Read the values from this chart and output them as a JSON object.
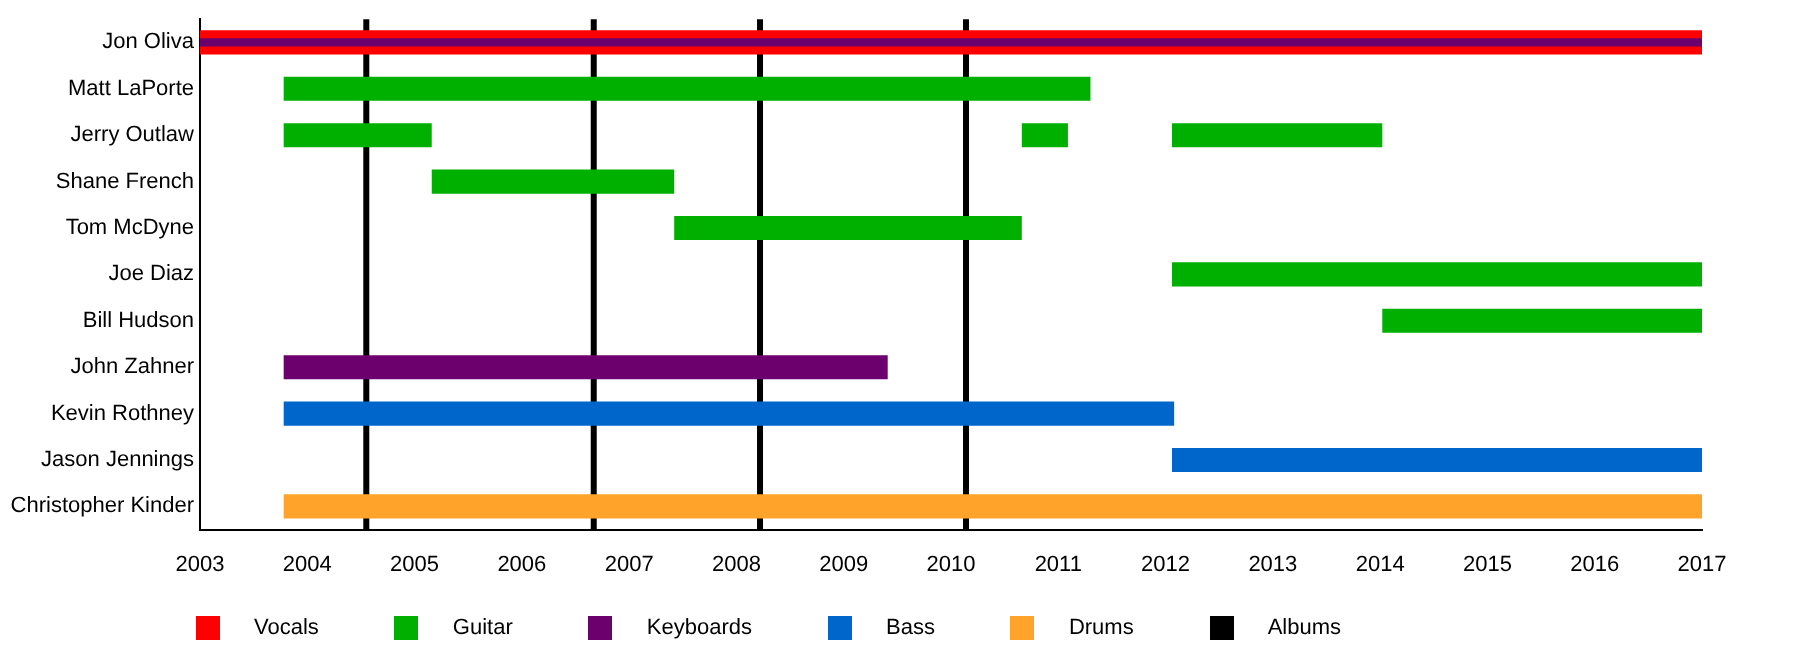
{
  "chart_data": {
    "type": "bar",
    "orientation": "horizontal",
    "legend": "bottom",
    "grid": false,
    "categories": [
      "Jon Oliva",
      "Matt LaPorte",
      "Jerry Outlaw",
      "Shane French",
      "Tom McDyne",
      "Joe Diaz",
      "Bill Hudson",
      "John Zahner",
      "Kevin Rothney",
      "Jason Jennings",
      "Christopher Kinder"
    ],
    "xlim": [
      2003,
      2017
    ],
    "xticks": [
      2003,
      2004,
      2005,
      2006,
      2007,
      2008,
      2009,
      2010,
      2011,
      2012,
      2013,
      2014,
      2015,
      2016,
      2017
    ],
    "series": [
      {
        "name": "Vocals",
        "color": "#ff0000",
        "base": [
          2003,
          null,
          null,
          null,
          null,
          null,
          null,
          null,
          null,
          null,
          null
        ],
        "values": [
          14,
          null,
          null,
          null,
          null,
          null,
          null,
          null,
          null,
          null,
          null
        ]
      },
      {
        "name": "Guitar",
        "color": "#00b000",
        "base": [
          null,
          2003.78,
          2003.78,
          2005.16,
          2007.42,
          2012.06,
          2014.02,
          null,
          null,
          null,
          null
        ],
        "values": [
          null,
          7.52,
          1.38,
          2.26,
          3.24,
          4.94,
          2.98,
          null,
          null,
          null,
          null
        ]
      },
      {
        "color": "#00b000",
        "base": [
          null,
          null,
          2010.66,
          null,
          null,
          null,
          null,
          null,
          null,
          null,
          null
        ],
        "values": [
          null,
          null,
          0.43,
          null,
          null,
          null,
          null,
          null,
          null,
          null,
          null
        ]
      },
      {
        "color": "#00b000",
        "base": [
          null,
          null,
          2012.06,
          null,
          null,
          null,
          null,
          null,
          null,
          null,
          null
        ],
        "values": [
          null,
          null,
          1.96,
          null,
          null,
          null,
          null,
          null,
          null,
          null,
          null
        ]
      },
      {
        "name": "Keyboards",
        "color": "#6c006c",
        "base": [
          null,
          null,
          null,
          null,
          null,
          null,
          null,
          2003.78,
          null,
          null,
          null
        ],
        "values": [
          null,
          null,
          null,
          null,
          null,
          null,
          null,
          5.63,
          null,
          null,
          null
        ]
      },
      {
        "color": "#6c006c",
        "base": [
          2003,
          null,
          null,
          null,
          null,
          null,
          null,
          null,
          null,
          null,
          null
        ],
        "values": [
          14,
          null,
          null,
          null,
          null,
          null,
          null,
          null,
          null,
          null,
          null
        ]
      },
      {
        "name": "Bass",
        "color": "#0066cc",
        "base": [
          null,
          null,
          null,
          null,
          null,
          null,
          null,
          null,
          2003.78,
          2012.06,
          null
        ],
        "values": [
          null,
          null,
          null,
          null,
          null,
          null,
          null,
          null,
          8.3,
          4.94,
          null
        ]
      },
      {
        "name": "Drums",
        "color": "#ffa32a",
        "base": [
          null,
          null,
          null,
          null,
          null,
          null,
          null,
          null,
          null,
          null,
          2003.78
        ],
        "values": [
          null,
          null,
          null,
          null,
          null,
          null,
          null,
          null,
          null,
          null,
          13.22
        ]
      }
    ],
    "ref_lines": [
      {
        "axis": "x",
        "value": 2004.55,
        "label": "Albums",
        "color": "#000000"
      },
      {
        "axis": "x",
        "value": 2006.67,
        "color": "#000000"
      },
      {
        "axis": "x",
        "value": 2008.22,
        "color": "#000000"
      },
      {
        "axis": "x",
        "value": 2010.14,
        "color": "#000000"
      }
    ]
  }
}
